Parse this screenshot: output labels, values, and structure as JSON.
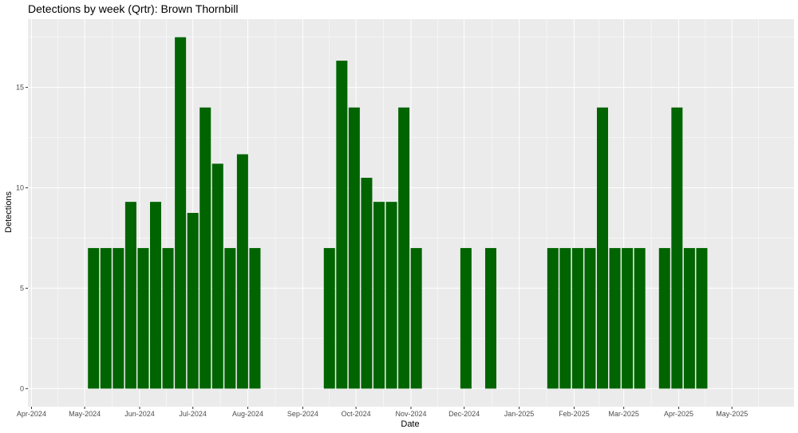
{
  "colors": {
    "panel_background": "#ebebeb",
    "gridline": "#ffffff",
    "bar_fill": "#006400",
    "tick_text": "#4d4d4d"
  },
  "chart_data": {
    "type": "bar",
    "title": "Detections by week (Qrtr): Brown Thornbill",
    "xlabel": "Date",
    "ylabel": "Detections",
    "ylim": [
      -0.9,
      18.4
    ],
    "xlim": [
      "2024-03-30",
      "2025-06-05"
    ],
    "grid": true,
    "legend": "none",
    "bar_width_days": 6.3,
    "y_ticks": [
      0,
      5,
      10,
      15
    ],
    "y_tick_labels": [
      "0",
      "5",
      "10",
      "15"
    ],
    "x_ticks": [
      "2024-04-01",
      "2024-05-01",
      "2024-06-01",
      "2024-07-01",
      "2024-08-01",
      "2024-09-01",
      "2024-10-01",
      "2024-11-01",
      "2024-12-01",
      "2025-01-01",
      "2025-02-01",
      "2025-03-01",
      "2025-04-01",
      "2025-05-01"
    ],
    "x_tick_labels": [
      "Apr-2024",
      "May-2024",
      "Jun-2024",
      "Jul-2024",
      "Aug-2024",
      "Sep-2024",
      "Oct-2024",
      "Nov-2024",
      "Dec-2024",
      "Jan-2025",
      "Feb-2025",
      "Mar-2025",
      "Apr-2025",
      "May-2025"
    ],
    "x": [
      "2024-05-06",
      "2024-05-13",
      "2024-05-20",
      "2024-05-27",
      "2024-06-03",
      "2024-06-10",
      "2024-06-17",
      "2024-06-24",
      "2024-07-01",
      "2024-07-08",
      "2024-07-15",
      "2024-07-22",
      "2024-07-29",
      "2024-08-05",
      "2024-09-16",
      "2024-09-23",
      "2024-09-30",
      "2024-10-07",
      "2024-10-14",
      "2024-10-21",
      "2024-10-28",
      "2024-11-04",
      "2024-12-02",
      "2024-12-16",
      "2025-01-20",
      "2025-01-27",
      "2025-02-03",
      "2025-02-10",
      "2025-02-17",
      "2025-02-24",
      "2025-03-03",
      "2025-03-10",
      "2025-03-24",
      "2025-03-31",
      "2025-04-07",
      "2025-04-14"
    ],
    "values": [
      7,
      7,
      7,
      9.3,
      7,
      9.3,
      7,
      17.5,
      8.75,
      14,
      11.2,
      7,
      11.67,
      7,
      7,
      16.33,
      14,
      10.5,
      9.3,
      9.3,
      14,
      7,
      7,
      7,
      7,
      7,
      7,
      7,
      14,
      7,
      7,
      7,
      7,
      14,
      7,
      7
    ]
  }
}
